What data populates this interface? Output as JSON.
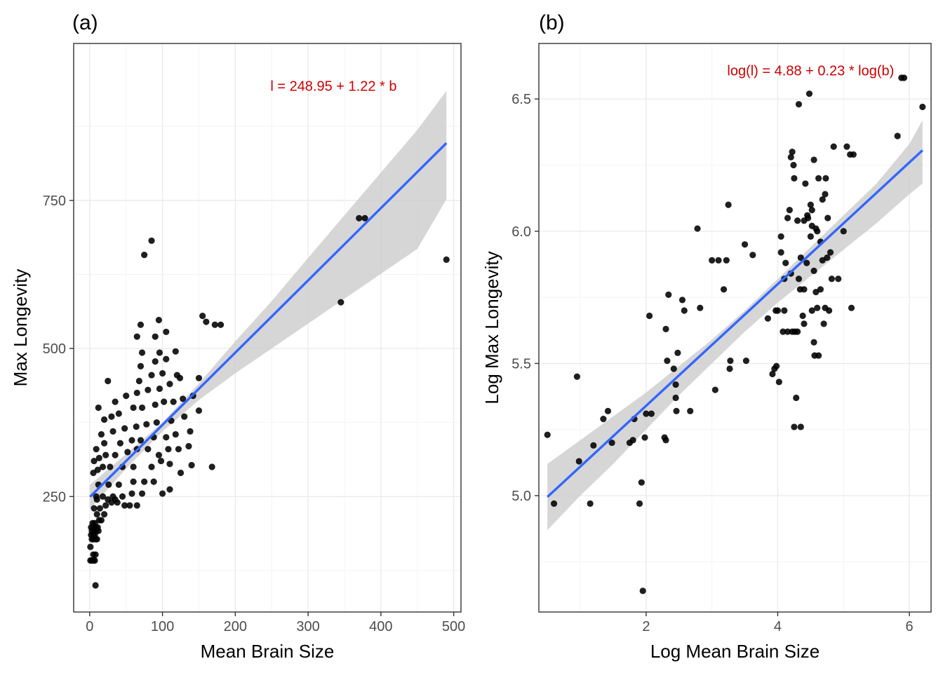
{
  "colors": {
    "points": "#000000",
    "fit_line": "#3366ff",
    "ribbon": "#cccccc",
    "equation": "#cc0000",
    "grid_major": "#ebebeb",
    "grid_minor": "#f4f4f4",
    "panel_border": "#333333",
    "tick_text": "#4d4d4d"
  },
  "chart_data": [
    {
      "type": "scatter",
      "panel_label": "(a)",
      "xlabel": "Mean Brain Size",
      "ylabel": "Max Longevity",
      "xlim": [
        -22,
        510
      ],
      "ylim": [
        55,
        1015
      ],
      "xticks": [
        0,
        100,
        200,
        300,
        400,
        500
      ],
      "yticks": [
        250,
        500,
        750
      ],
      "grid": true,
      "annotation": {
        "text": "l = 248.95 + 1.22 * b",
        "x": 335,
        "y": 935
      },
      "fit": {
        "intercept": 248.95,
        "slope": 1.22,
        "x_range": [
          0.5,
          490
        ]
      },
      "ribbon": {
        "x": [
          0.5,
          50,
          100,
          150,
          200,
          250,
          300,
          350,
          400,
          450,
          490
        ],
        "lower": [
          229,
          297,
          360,
          413,
          458,
          500,
          542,
          584,
          626,
          668,
          752
        ],
        "upper": [
          270,
          322,
          375,
          441,
          512,
          580,
          653,
          725,
          797,
          869,
          935
        ]
      },
      "points": [
        [
          1,
          142
        ],
        [
          3,
          142
        ],
        [
          5,
          142
        ],
        [
          7,
          142
        ],
        [
          5,
          152
        ],
        [
          8,
          152
        ],
        [
          1,
          165
        ],
        [
          3,
          178
        ],
        [
          5,
          178
        ],
        [
          8,
          178
        ],
        [
          10,
          178
        ],
        [
          2,
          185
        ],
        [
          5,
          185
        ],
        [
          7,
          185
        ],
        [
          3,
          192
        ],
        [
          6,
          192
        ],
        [
          9,
          192
        ],
        [
          12,
          192
        ],
        [
          2,
          198
        ],
        [
          5,
          198
        ],
        [
          8,
          198
        ],
        [
          11,
          198
        ],
        [
          4,
          205
        ],
        [
          7,
          205
        ],
        [
          13,
          210
        ],
        [
          16,
          210
        ],
        [
          10,
          220
        ],
        [
          20,
          220
        ],
        [
          6,
          230
        ],
        [
          14,
          230
        ],
        [
          22,
          235
        ],
        [
          30,
          240
        ],
        [
          38,
          240
        ],
        [
          10,
          245
        ],
        [
          25,
          245
        ],
        [
          35,
          245
        ],
        [
          48,
          235
        ],
        [
          55,
          235
        ],
        [
          65,
          235
        ],
        [
          9,
          250
        ],
        [
          18,
          250
        ],
        [
          32,
          250
        ],
        [
          45,
          250
        ],
        [
          58,
          255
        ],
        [
          72,
          255
        ],
        [
          12,
          270
        ],
        [
          26,
          270
        ],
        [
          40,
          270
        ],
        [
          60,
          275
        ],
        [
          75,
          275
        ],
        [
          88,
          275
        ],
        [
          100,
          255
        ],
        [
          110,
          262
        ],
        [
          5,
          290
        ],
        [
          11,
          295
        ],
        [
          18,
          300
        ],
        [
          28,
          300
        ],
        [
          45,
          300
        ],
        [
          60,
          300
        ],
        [
          85,
          300
        ],
        [
          98,
          310
        ],
        [
          110,
          305
        ],
        [
          125,
          290
        ],
        [
          140,
          303
        ],
        [
          168,
          300
        ],
        [
          6,
          310
        ],
        [
          13,
          315
        ],
        [
          22,
          320
        ],
        [
          35,
          320
        ],
        [
          52,
          325
        ],
        [
          65,
          330
        ],
        [
          80,
          330
        ],
        [
          95,
          320
        ],
        [
          108,
          330
        ],
        [
          122,
          330
        ],
        [
          136,
          335
        ],
        [
          9,
          330
        ],
        [
          20,
          340
        ],
        [
          42,
          340
        ],
        [
          58,
          345
        ],
        [
          70,
          345
        ],
        [
          88,
          350
        ],
        [
          105,
          350
        ],
        [
          118,
          355
        ],
        [
          138,
          360
        ],
        [
          16,
          355
        ],
        [
          32,
          360
        ],
        [
          48,
          365
        ],
        [
          64,
          368
        ],
        [
          78,
          372
        ],
        [
          92,
          375
        ],
        [
          112,
          378
        ],
        [
          130,
          385
        ],
        [
          150,
          395
        ],
        [
          20,
          380
        ],
        [
          30,
          385
        ],
        [
          40,
          390
        ],
        [
          60,
          400
        ],
        [
          72,
          400
        ],
        [
          90,
          405
        ],
        [
          102,
          410
        ],
        [
          115,
          410
        ],
        [
          128,
          415
        ],
        [
          142,
          420
        ],
        [
          12,
          400
        ],
        [
          35,
          410
        ],
        [
          50,
          420
        ],
        [
          65,
          425
        ],
        [
          80,
          430
        ],
        [
          96,
          432
        ],
        [
          110,
          440
        ],
        [
          124,
          450
        ],
        [
          150,
          450
        ],
        [
          25,
          445
        ],
        [
          68,
          445
        ],
        [
          85,
          455
        ],
        [
          100,
          458
        ],
        [
          120,
          455
        ],
        [
          70,
          470
        ],
        [
          90,
          478
        ],
        [
          105,
          482
        ],
        [
          72,
          493
        ],
        [
          96,
          493
        ],
        [
          118,
          495
        ],
        [
          65,
          520
        ],
        [
          90,
          520
        ],
        [
          105,
          528
        ],
        [
          70,
          540
        ],
        [
          95,
          548
        ],
        [
          160,
          545
        ],
        [
          172,
          540
        ],
        [
          180,
          540
        ],
        [
          155,
          555
        ],
        [
          75,
          658
        ],
        [
          85,
          682
        ],
        [
          345,
          578
        ],
        [
          370,
          720
        ],
        [
          378,
          720
        ],
        [
          490,
          650
        ],
        [
          8,
          100
        ]
      ]
    },
    {
      "type": "scatter",
      "panel_label": "(b)",
      "xlabel": "Log Mean Brain Size",
      "ylabel": "Log Max Longevity",
      "xlim": [
        0.37,
        6.33
      ],
      "ylim": [
        4.56,
        6.71
      ],
      "xticks": [
        2,
        4,
        6
      ],
      "yticks": [
        5.0,
        5.5,
        6.0,
        6.5
      ],
      "grid": true,
      "annotation": {
        "text": "log(l) = 4.88 + 0.23 * log(b)",
        "x": 4.5,
        "y": 6.59
      },
      "fit": {
        "intercept": 4.88,
        "slope": 0.23,
        "x_range": [
          0.5,
          6.2
        ]
      },
      "ribbon": {
        "x": [
          0.5,
          1.0,
          1.5,
          2.0,
          2.5,
          3.0,
          3.5,
          4.0,
          4.5,
          5.0,
          5.5,
          6.0,
          6.2
        ],
        "lower": [
          4.87,
          5.0,
          5.12,
          5.25,
          5.38,
          5.5,
          5.62,
          5.73,
          5.83,
          5.93,
          6.03,
          6.14,
          6.18
        ],
        "upper": [
          5.12,
          5.21,
          5.3,
          5.39,
          5.49,
          5.59,
          5.7,
          5.82,
          5.94,
          6.06,
          6.18,
          6.33,
          6.42
        ]
      },
      "points": [
        [
          0.5,
          5.23
        ],
        [
          0.6,
          4.97
        ],
        [
          0.95,
          5.45
        ],
        [
          0.98,
          5.13
        ],
        [
          1.15,
          4.97
        ],
        [
          1.2,
          5.19
        ],
        [
          1.35,
          5.29
        ],
        [
          1.42,
          5.32
        ],
        [
          1.48,
          5.2
        ],
        [
          1.75,
          5.2
        ],
        [
          1.8,
          5.21
        ],
        [
          1.82,
          5.29
        ],
        [
          1.9,
          4.97
        ],
        [
          1.93,
          5.05
        ],
        [
          1.95,
          4.64
        ],
        [
          1.98,
          5.22
        ],
        [
          2.0,
          5.31
        ],
        [
          2.08,
          5.31
        ],
        [
          2.05,
          5.68
        ],
        [
          2.28,
          5.22
        ],
        [
          2.3,
          5.21
        ],
        [
          2.3,
          5.63
        ],
        [
          2.32,
          5.51
        ],
        [
          2.34,
          5.76
        ],
        [
          2.42,
          5.48
        ],
        [
          2.45,
          5.42
        ],
        [
          2.45,
          5.37
        ],
        [
          2.48,
          5.54
        ],
        [
          2.46,
          5.32
        ],
        [
          2.55,
          5.74
        ],
        [
          2.58,
          5.7
        ],
        [
          2.67,
          5.32
        ],
        [
          2.78,
          6.01
        ],
        [
          2.82,
          5.71
        ],
        [
          3.0,
          5.89
        ],
        [
          3.05,
          5.4
        ],
        [
          3.1,
          5.89
        ],
        [
          3.18,
          5.78
        ],
        [
          3.22,
          5.89
        ],
        [
          3.28,
          5.51
        ],
        [
          3.27,
          5.48
        ],
        [
          3.25,
          6.1
        ],
        [
          3.5,
          5.95
        ],
        [
          3.52,
          5.51
        ],
        [
          3.62,
          5.91
        ],
        [
          3.85,
          5.67
        ],
        [
          3.92,
          5.46
        ],
        [
          3.95,
          5.48
        ],
        [
          3.97,
          5.7
        ],
        [
          3.98,
          5.49
        ],
        [
          4.0,
          5.7
        ],
        [
          4.02,
          5.43
        ],
        [
          4.05,
          5.98
        ],
        [
          4.05,
          5.92
        ],
        [
          4.08,
          5.62
        ],
        [
          4.1,
          5.7
        ],
        [
          4.1,
          5.82
        ],
        [
          4.12,
          5.88
        ],
        [
          4.15,
          5.62
        ],
        [
          4.15,
          6.05
        ],
        [
          4.18,
          6.08
        ],
        [
          4.2,
          5.84
        ],
        [
          4.2,
          6.28
        ],
        [
          4.22,
          6.3
        ],
        [
          4.24,
          6.25
        ],
        [
          4.22,
          5.62
        ],
        [
          4.25,
          5.26
        ],
        [
          4.25,
          6.2
        ],
        [
          4.26,
          5.62
        ],
        [
          4.28,
          5.37
        ],
        [
          4.3,
          5.62
        ],
        [
          4.3,
          6.04
        ],
        [
          4.32,
          6.48
        ],
        [
          4.32,
          5.82
        ],
        [
          4.34,
          5.78
        ],
        [
          4.35,
          5.9
        ],
        [
          4.35,
          5.26
        ],
        [
          4.38,
          5.68
        ],
        [
          4.4,
          5.78
        ],
        [
          4.4,
          6.04
        ],
        [
          4.42,
          6.18
        ],
        [
          4.44,
          5.88
        ],
        [
          4.46,
          6.05
        ],
        [
          4.48,
          6.52
        ],
        [
          4.5,
          6.1
        ],
        [
          4.52,
          6.02
        ],
        [
          4.52,
          5.7
        ],
        [
          4.55,
          5.85
        ],
        [
          4.55,
          5.58
        ],
        [
          4.56,
          5.53
        ],
        [
          4.58,
          5.77
        ],
        [
          4.6,
          6.0
        ],
        [
          4.62,
          5.53
        ],
        [
          4.62,
          6.2
        ],
        [
          4.65,
          5.78
        ],
        [
          4.65,
          5.96
        ],
        [
          4.68,
          6.12
        ],
        [
          4.7,
          5.65
        ],
        [
          4.72,
          6.14
        ],
        [
          4.73,
          6.2
        ],
        [
          4.75,
          5.9
        ],
        [
          4.76,
          6.05
        ],
        [
          4.78,
          5.7
        ],
        [
          4.8,
          5.92
        ],
        [
          4.82,
          5.82
        ],
        [
          4.85,
          6.32
        ],
        [
          4.92,
          5.82
        ],
        [
          5.0,
          6.0
        ],
        [
          5.05,
          6.32
        ],
        [
          5.1,
          6.29
        ],
        [
          5.15,
          6.29
        ],
        [
          5.12,
          5.71
        ],
        [
          5.82,
          6.36
        ],
        [
          5.88,
          6.58
        ],
        [
          5.92,
          6.58
        ],
        [
          6.2,
          6.47
        ],
        [
          4.55,
          6.27
        ],
        [
          4.45,
          6.06
        ],
        [
          4.6,
          5.71
        ],
        [
          4.68,
          5.89
        ],
        [
          4.52,
          6.08
        ],
        [
          4.4,
          5.65
        ],
        [
          4.58,
          6.01
        ],
        [
          4.72,
          5.71
        ],
        [
          4.5,
          5.98
        ]
      ]
    }
  ]
}
